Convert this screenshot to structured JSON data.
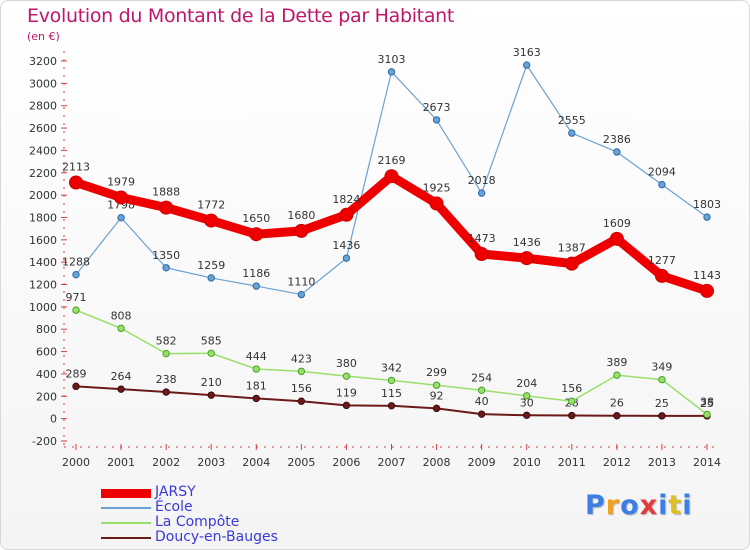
{
  "chart_data": {
    "type": "line",
    "title": "Evolution du Montant de la Dette par Habitant",
    "subtitle": "(en €)",
    "x": [
      "2000",
      "2001",
      "2002",
      "2003",
      "2004",
      "2005",
      "2006",
      "2007",
      "2008",
      "2009",
      "2010",
      "2011",
      "2012",
      "2013",
      "2014"
    ],
    "ylim": [
      -200,
      3200
    ],
    "yticks": [
      -200,
      0,
      200,
      400,
      600,
      800,
      1000,
      1200,
      1400,
      1600,
      1800,
      2000,
      2200,
      2400,
      2600,
      2800,
      3000,
      3200
    ],
    "grid": false,
    "legend": "bottom-left",
    "series": [
      {
        "name": "Doucy-en-Bauges",
        "color": "#6b1a1a",
        "width": 2,
        "values": [
          289,
          264,
          238,
          210,
          181,
          156,
          119,
          115,
          92,
          40,
          30,
          28,
          26,
          25,
          25
        ]
      },
      {
        "name": "La Compôte",
        "color": "#99e06a",
        "width": 1.5,
        "values": [
          971,
          808,
          582,
          585,
          444,
          423,
          380,
          342,
          299,
          254,
          204,
          156,
          389,
          349,
          38
        ]
      },
      {
        "name": "École",
        "color": "#6aa2d4",
        "width": 1.2,
        "values": [
          1288,
          1798,
          1350,
          1259,
          1186,
          1110,
          1436,
          3103,
          2673,
          2018,
          3163,
          2555,
          2386,
          2094,
          1803
        ]
      },
      {
        "name": "JARSY",
        "color": "#ee0000",
        "width": 9,
        "values": [
          2113,
          1979,
          1888,
          1772,
          1650,
          1680,
          1824,
          2169,
          1925,
          1473,
          1436,
          1387,
          1609,
          1277,
          1143
        ]
      }
    ]
  },
  "legend_order": [
    "JARSY",
    "École",
    "La Compôte",
    "Doucy-en-Bauges"
  ],
  "logo": {
    "letters": [
      "P",
      "r",
      "o",
      "x",
      "i",
      "t",
      "i"
    ],
    "colors": [
      "#3a7ee6",
      "#f0a020",
      "#3a7ee6",
      "#e03a3a",
      "#3a7ee6",
      "#e0c020",
      "#3a7ee6"
    ]
  }
}
